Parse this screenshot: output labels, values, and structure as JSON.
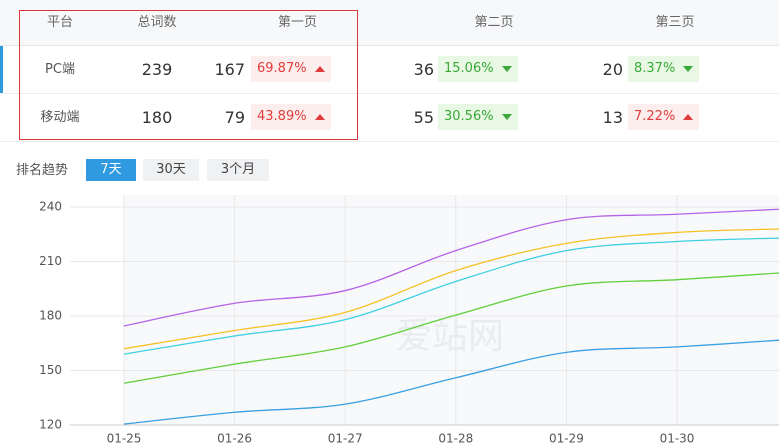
{
  "table": {
    "header": [
      "平台",
      "总词数",
      "第一页",
      "第二页",
      "第三页"
    ],
    "rows": [
      {
        "platform": "PC端",
        "total": "239",
        "pages": [
          {
            "count": "167",
            "pct": "69.87%",
            "trend": "up"
          },
          {
            "count": "36",
            "pct": "15.06%",
            "trend": "down"
          },
          {
            "count": "20",
            "pct": "8.37%",
            "trend": "down"
          }
        ]
      },
      {
        "platform": "移动端",
        "total": "180",
        "pages": [
          {
            "count": "79",
            "pct": "43.89%",
            "trend": "up"
          },
          {
            "count": "55",
            "pct": "30.56%",
            "trend": "down"
          },
          {
            "count": "13",
            "pct": "7.22%",
            "trend": "up"
          }
        ]
      }
    ]
  },
  "tabs": {
    "label": "排名趋势",
    "options": [
      "7天",
      "30天",
      "3个月"
    ],
    "active": 0
  },
  "chart_data": {
    "type": "line",
    "watermark": "爱站网",
    "categories": [
      "01-25",
      "01-26",
      "01-27",
      "01-28",
      "01-29",
      "01-30",
      null
    ],
    "series": [
      {
        "color": "#b563e6",
        "values": [
          174.5,
          187,
          194,
          216,
          233,
          236,
          239
        ]
      },
      {
        "color": "#f5c125",
        "values": [
          162,
          172,
          182,
          205,
          220,
          226,
          228
        ]
      },
      {
        "color": "#3fd0e2",
        "values": [
          159,
          169,
          178,
          199,
          216,
          221,
          223
        ]
      },
      {
        "color": "#62cf3e",
        "values": [
          143,
          153.5,
          163,
          180.5,
          196.5,
          200,
          204
        ]
      },
      {
        "color": "#3a9fe2",
        "values": [
          120.5,
          127,
          131.5,
          146,
          160,
          163,
          167
        ]
      }
    ],
    "ylim": [
      120,
      240
    ],
    "yticks": [
      120,
      150,
      180,
      210,
      240
    ],
    "grid": true
  }
}
